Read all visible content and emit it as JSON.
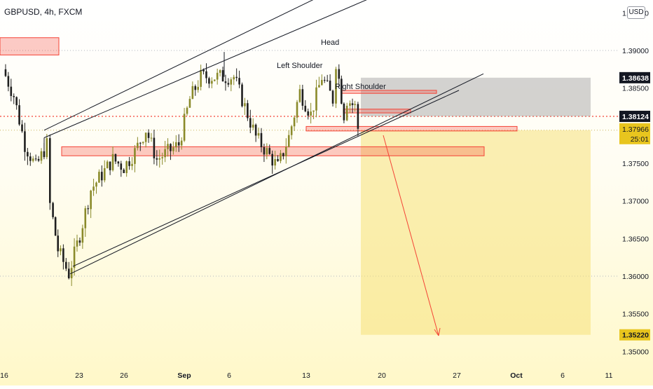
{
  "header": {
    "symbol": "GBPUSD, 4h, FXCM",
    "currency": "USD"
  },
  "price_axis": {
    "ticks": [
      "1.39500",
      "1.39000",
      "1.38500",
      "1.37500",
      "1.37000",
      "1.36500",
      "1.36000",
      "1.35500",
      "1.35000"
    ],
    "tick_values": [
      1.395,
      1.39,
      1.385,
      1.375,
      1.37,
      1.365,
      1.36,
      1.355,
      1.35
    ]
  },
  "price_tags": {
    "target_top": "1.38638",
    "entry_line": "1.38124",
    "last_price": "1.37966",
    "countdown": "25:01",
    "target_bottom": "1.35220"
  },
  "time_axis": {
    "labels": [
      "16",
      "23",
      "26",
      "Sep",
      "6",
      "13",
      "20",
      "27",
      "Oct",
      "6",
      "11"
    ]
  },
  "annotations": {
    "left_shoulder": "Left Shoulder",
    "head": "Head",
    "right_shoulder": "Right Shoulder"
  },
  "colors": {
    "up_candle": "#8a8a2a",
    "down_candle": "#1f1f1f",
    "resistance_zone": "#f44336",
    "stop_box": "#9e9e9e",
    "target_box": "#f5e27a",
    "last_price_tag": "#e8c51e",
    "axis_tag": "#131722",
    "projection_arrow": "#f44336"
  },
  "chart_data": {
    "type": "candlestick",
    "symbol": "GBPUSD",
    "timeframe": "4h",
    "ylim": [
      1.348,
      1.3975
    ],
    "current_price": 1.37966,
    "entry_level": 1.38124,
    "target_level": 1.3522,
    "stop_level": 1.38638,
    "pattern": "head and shoulders inside rising channel",
    "projected_direction": "down",
    "close_path": [
      {
        "x": "Aug 16",
        "y": 1.3875
      },
      {
        "x": "Aug 17",
        "y": 1.384
      },
      {
        "x": "Aug 18",
        "y": 1.3775
      },
      {
        "x": "Aug 19",
        "y": 1.3745
      },
      {
        "x": "Aug 20",
        "y": 1.3775
      },
      {
        "x": "Aug 20",
        "y": 1.3695
      },
      {
        "x": "Aug 21",
        "y": 1.3635
      },
      {
        "x": "Aug 22",
        "y": 1.3603
      },
      {
        "x": "Aug 23",
        "y": 1.3655
      },
      {
        "x": "Aug 24",
        "y": 1.3715
      },
      {
        "x": "Aug 25",
        "y": 1.3735
      },
      {
        "x": "Aug 26",
        "y": 1.3755
      },
      {
        "x": "Aug 27",
        "y": 1.3745
      },
      {
        "x": "Aug 28",
        "y": 1.3765
      },
      {
        "x": "Aug 29",
        "y": 1.3795
      },
      {
        "x": "Aug 30",
        "y": 1.3755
      },
      {
        "x": "Aug 31",
        "y": 1.3765
      },
      {
        "x": "Sep 1",
        "y": 1.3775
      },
      {
        "x": "Sep 2",
        "y": 1.3835
      },
      {
        "x": "Sep 3",
        "y": 1.3865
      },
      {
        "x": "Sep 6",
        "y": 1.3865
      },
      {
        "x": "Sep 7",
        "y": 1.3825
      },
      {
        "x": "Sep 8",
        "y": 1.3785
      },
      {
        "x": "Sep 9",
        "y": 1.3765
      },
      {
        "x": "Sep 10",
        "y": 1.3745
      },
      {
        "x": "Sep 11",
        "y": 1.3785
      },
      {
        "x": "Sep 12",
        "y": 1.3845
      },
      {
        "x": "Sep 13",
        "y": 1.3815
      },
      {
        "x": "Sep 14",
        "y": 1.3865
      },
      {
        "x": "Sep 15",
        "y": 1.3835
      },
      {
        "x": "Sep 15",
        "y": 1.3885
      },
      {
        "x": "Sep 16",
        "y": 1.3815
      },
      {
        "x": "Sep 16",
        "y": 1.3835
      },
      {
        "x": "Sep 17",
        "y": 1.3825
      },
      {
        "x": "Sep 17",
        "y": 1.37966
      }
    ]
  }
}
